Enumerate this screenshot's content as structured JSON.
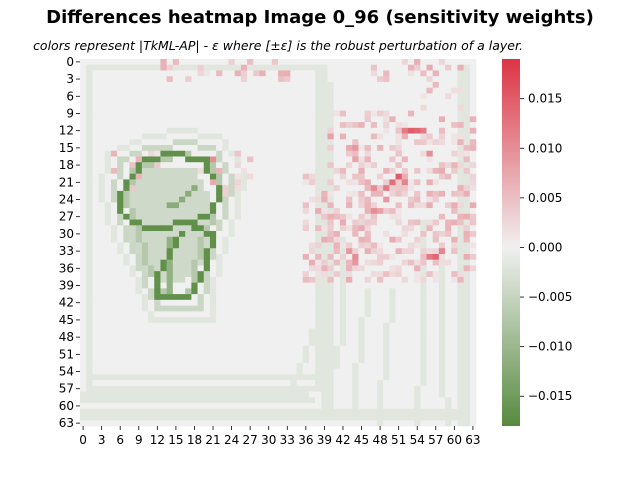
{
  "chart_data": {
    "type": "heatmap",
    "title": "Differences heatmap Image 0_96 (sensitivity weights)",
    "subtitle": "colors represent |TkML-AP| - ε where [±ε] is the robust perturbation of a layer.",
    "rows": 64,
    "cols": 64,
    "x_ticks": [
      "0",
      "3",
      "6",
      "9",
      "12",
      "15",
      "18",
      "21",
      "24",
      "27",
      "30",
      "33",
      "36",
      "39",
      "42",
      "45",
      "48",
      "51",
      "54",
      "57",
      "60",
      "63"
    ],
    "y_ticks": [
      "0",
      "3",
      "6",
      "9",
      "12",
      "15",
      "18",
      "21",
      "24",
      "27",
      "30",
      "33",
      "36",
      "39",
      "42",
      "45",
      "48",
      "51",
      "54",
      "57",
      "60",
      "63"
    ],
    "colorbar": {
      "min": -0.018,
      "max": 0.019,
      "ticks": [
        "0.015",
        "0.010",
        "0.005",
        "0.000",
        "−0.005",
        "−0.010",
        "−0.015"
      ],
      "tick_values": [
        0.015,
        0.01,
        0.005,
        0.0,
        -0.005,
        -0.01,
        -0.015
      ],
      "colors": {
        "negative": "#578a3f",
        "zero": "#f0f0f0",
        "positive": "#dc3545"
      }
    },
    "background_value": 0.0,
    "regions_approx": [
      {
        "desc": "digit outline strokes",
        "value": -0.017
      },
      {
        "desc": "digit inner halo",
        "value": -0.007
      },
      {
        "desc": "outer halos and frame lines",
        "value": -0.002
      },
      {
        "desc": "right-side positive speckles",
        "value": 0.004
      },
      {
        "desc": "strong positive hotspots",
        "value": 0.015
      }
    ]
  }
}
